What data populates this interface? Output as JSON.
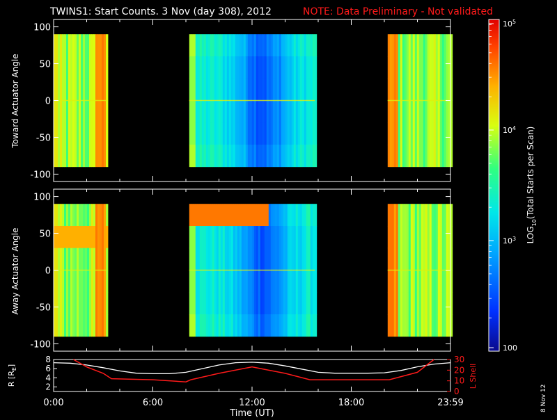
{
  "header": {
    "title": "TWINS1: Start Counts.  3 Nov (day 308), 2012",
    "note": "NOTE: Data Preliminary - Not validated"
  },
  "colors": {
    "background": "#000000",
    "axes": "#ffffff",
    "note": "#ff1a1a",
    "lshell_line": "#ff1a1a",
    "radius_line": "#ffffff"
  },
  "chart_data": [
    {
      "type": "heatmap",
      "name": "toward-panel",
      "ylabel": "Toward Actuator Angle",
      "ylim": [
        -110,
        110
      ],
      "yticks": [
        "100",
        "50",
        "0",
        "-50",
        "-100"
      ],
      "xlim_hours": [
        0,
        24
      ],
      "data_blocks": [
        {
          "start_hour": 0.0,
          "end_hour": 3.2,
          "angle_range": [
            -90,
            90
          ],
          "level": "high (green-orange, ~10^3.9-10^4.8)"
        },
        {
          "start_hour": 8.2,
          "end_hour": 15.8,
          "angle_range": [
            -90,
            90
          ],
          "level": "low-mid (cyan-blue, ~10^3-10^3.6)"
        },
        {
          "start_hour": 20.2,
          "end_hour": 24.0,
          "angle_range": [
            -90,
            90
          ],
          "level": "high (green-orange, ~10^3.9-10^4.8)"
        }
      ]
    },
    {
      "type": "heatmap",
      "name": "away-panel",
      "ylabel": "Away Actuator Angle",
      "ylim": [
        -110,
        110
      ],
      "yticks": [
        "100",
        "50",
        "0",
        "-50",
        "-100"
      ],
      "xlim_hours": [
        0,
        24
      ],
      "data_blocks": [
        {
          "start_hour": 0.0,
          "end_hour": 3.2,
          "angle_range": [
            -90,
            90
          ],
          "level": "high (orange-red near +70)"
        },
        {
          "start_hour": 8.2,
          "end_hour": 15.8,
          "angle_range": [
            -90,
            90
          ],
          "level": "low-mid, orange band near +80"
        },
        {
          "start_hour": 20.2,
          "end_hour": 24.0,
          "angle_range": [
            -90,
            90
          ],
          "level": "high (green-orange)"
        }
      ]
    },
    {
      "type": "line",
      "name": "orbit-panel",
      "xlabel": "Time (UT)",
      "xtick_labels": [
        "0:00",
        "6:00",
        "12:00",
        "18:00",
        "23:59"
      ],
      "xtick_hours": [
        0,
        6,
        12,
        18,
        24
      ],
      "ylabel": "R [R",
      "ylabel_sub": "E",
      "ylabel_end": "]",
      "ylim": [
        1,
        8
      ],
      "yticks": [
        "8",
        "6",
        "4",
        "2"
      ],
      "y2label": "L Shell",
      "y2lim": [
        0,
        30
      ],
      "y2ticks": [
        "30",
        "20",
        "10",
        "0"
      ],
      "series": [
        {
          "name": "R",
          "x": [
            0,
            1,
            2,
            3,
            4,
            5,
            6,
            7,
            8,
            9,
            10,
            11,
            12,
            13,
            14,
            15,
            16,
            17,
            18,
            19,
            20,
            21,
            22,
            23,
            24
          ],
          "y": [
            7.3,
            7.2,
            6.8,
            6.2,
            5.5,
            5.0,
            4.9,
            4.9,
            5.2,
            6.0,
            6.8,
            7.3,
            7.4,
            7.2,
            6.6,
            5.9,
            5.2,
            5.0,
            5.0,
            5.0,
            5.1,
            5.6,
            6.4,
            7.0,
            7.3
          ]
        },
        {
          "name": "L Shell",
          "x": [
            1.2,
            2,
            3,
            3.5,
            6,
            8,
            8.3,
            10,
            12,
            14,
            15.5,
            15.8,
            18,
            20,
            20.3,
            22,
            23
          ],
          "y": [
            30,
            23,
            17,
            12,
            11,
            9,
            11,
            17,
            23,
            17,
            11,
            11,
            11,
            11,
            11,
            18,
            30
          ]
        }
      ]
    }
  ],
  "colorbar": {
    "label_prefix": "LOG",
    "label_sub": "10",
    "label_suffix": "(Total Starts per Scan)",
    "ticks": [
      {
        "base": "10",
        "exp": "5",
        "value_log": 5
      },
      {
        "base": "10",
        "exp": "4",
        "value_log": 4
      },
      {
        "base": "10",
        "exp": "3",
        "value_log": 3
      },
      {
        "base": "100",
        "exp": "",
        "value_log": 2
      }
    ],
    "range_log": [
      2,
      5
    ]
  },
  "footer": {
    "date_stamp": "8 Nov 12"
  }
}
